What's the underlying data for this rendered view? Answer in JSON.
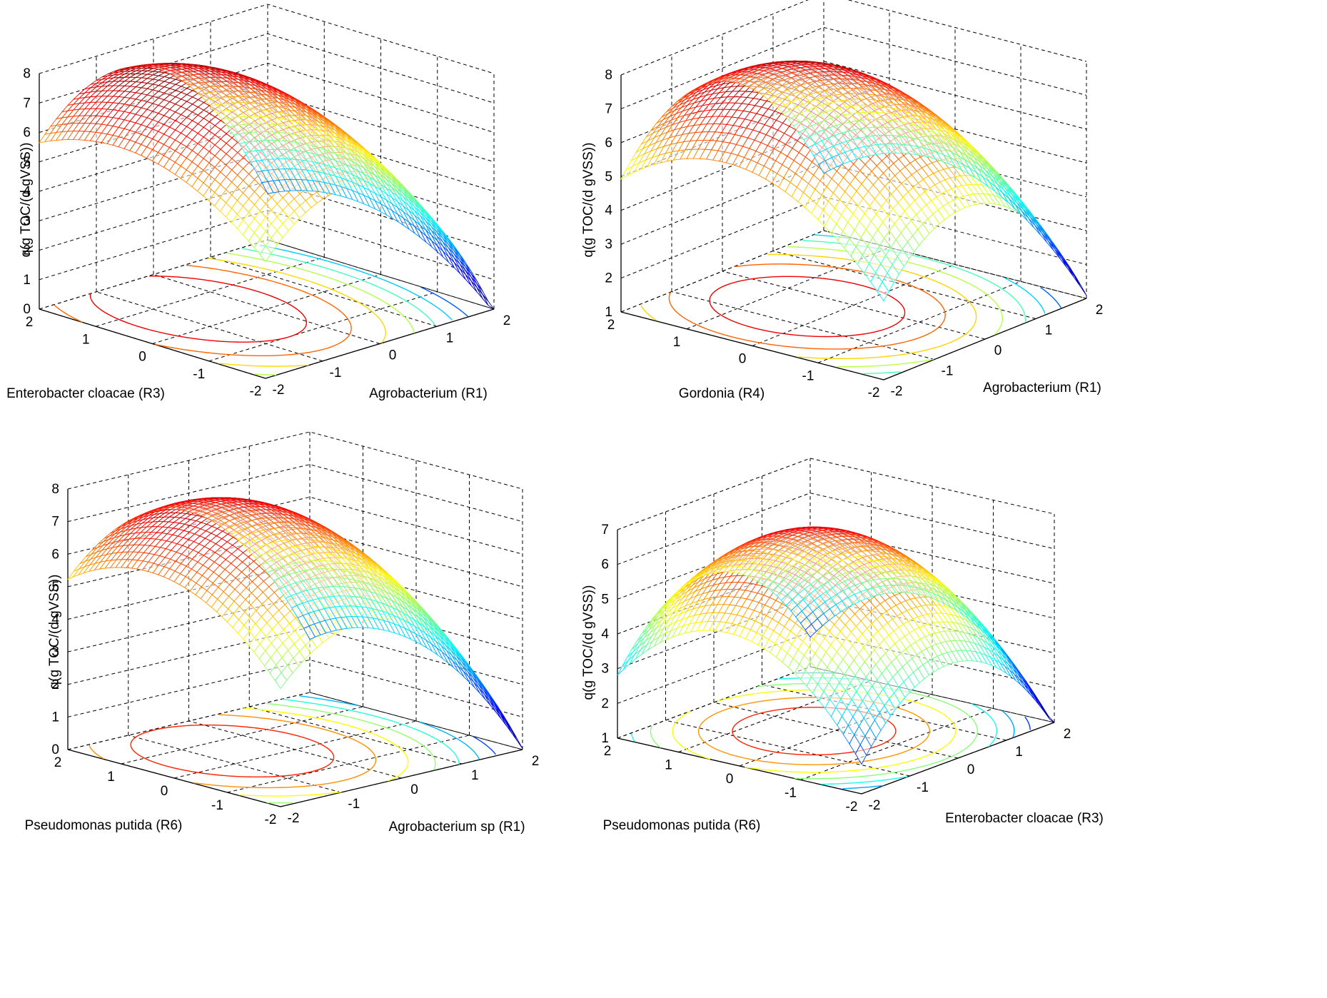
{
  "figure": {
    "panels": [
      {
        "chart_data": {
          "type": "surface",
          "xlabel": "Agrobacterium (R1)",
          "ylabel": "Enterobacter cloacae (R3)",
          "zlabel": "q(g TOC/(d gVSS))",
          "xlim": [
            -2,
            2
          ],
          "ylim": [
            -2,
            2
          ],
          "zlim": [
            0,
            8
          ],
          "xticks": [
            "-2",
            "-1",
            "0",
            "1",
            "2"
          ],
          "yticks": [
            "-2",
            "-1",
            "0",
            "1",
            "2"
          ],
          "zticks": [
            "0",
            "1",
            "2",
            "3",
            "4",
            "5",
            "6",
            "7",
            "8"
          ],
          "surface": {
            "peak": 8.0,
            "peak_x": -0.6,
            "peak_y": 0.6,
            "a": 0.85,
            "b": 0.35,
            "min_value": 0.8
          },
          "contours": true,
          "grid": true,
          "colormap": "jet"
        }
      },
      {
        "chart_data": {
          "type": "surface",
          "xlabel": "Agrobacterium (R1)",
          "ylabel": "Gordonia (R4)",
          "zlabel": "q(g TOC/(d gVSS))",
          "xlim": [
            -2,
            2
          ],
          "ylim": [
            -2,
            2
          ],
          "zlim": [
            1,
            8
          ],
          "xticks": [
            "-2",
            "-1",
            "0",
            "1",
            "2"
          ],
          "yticks": [
            "-2",
            "-1",
            "0",
            "1",
            "2"
          ],
          "zticks": [
            "1",
            "2",
            "3",
            "4",
            "5",
            "6",
            "7",
            "8"
          ],
          "surface": {
            "peak": 8.0,
            "peak_x": -0.4,
            "peak_y": 0.4,
            "a": 0.7,
            "b": 0.5,
            "min_value": 1.8
          },
          "contours": true,
          "grid": true,
          "colormap": "jet"
        }
      },
      {
        "chart_data": {
          "type": "surface",
          "xlabel": "Agrobacterium sp (R1)",
          "ylabel": "Pseudomonas putida (R6)",
          "zlabel": "q(g TOC/(d gVSS))",
          "xlim": [
            -2,
            2
          ],
          "ylim": [
            -2,
            2
          ],
          "zlim": [
            0,
            8
          ],
          "xticks": [
            "-2",
            "-1",
            "0",
            "1",
            "2"
          ],
          "yticks": [
            "-2",
            "-1",
            "0",
            "1",
            "2"
          ],
          "zticks": [
            "0",
            "1",
            "2",
            "3",
            "4",
            "5",
            "6",
            "7",
            "8"
          ],
          "surface": {
            "peak": 7.6,
            "peak_x": -0.6,
            "peak_y": 0.5,
            "a": 0.75,
            "b": 0.4,
            "min_value": 0.7
          },
          "contours": true,
          "grid": true,
          "colormap": "jet"
        }
      },
      {
        "chart_data": {
          "type": "surface",
          "xlabel": "Enterobacter cloacae (R3)",
          "ylabel": "Pseudomonas putida (R6)",
          "zlabel": "q(g TOC/(d gVSS))",
          "xlim": [
            -2,
            2
          ],
          "ylim": [
            -2,
            2
          ],
          "zlim": [
            1,
            7
          ],
          "xticks": [
            "-2",
            "-1",
            "0",
            "1",
            "2"
          ],
          "yticks": [
            "-2",
            "-1",
            "0",
            "1",
            "2"
          ],
          "zticks": [
            "1",
            "2",
            "3",
            "4",
            "5",
            "6",
            "7"
          ],
          "surface": {
            "peak": 6.7,
            "peak_x": -0.2,
            "peak_y": 0.2,
            "a": 0.6,
            "b": 0.6,
            "min_value": 1.4
          },
          "contours": true,
          "grid": true,
          "colormap": "jet"
        }
      }
    ]
  }
}
